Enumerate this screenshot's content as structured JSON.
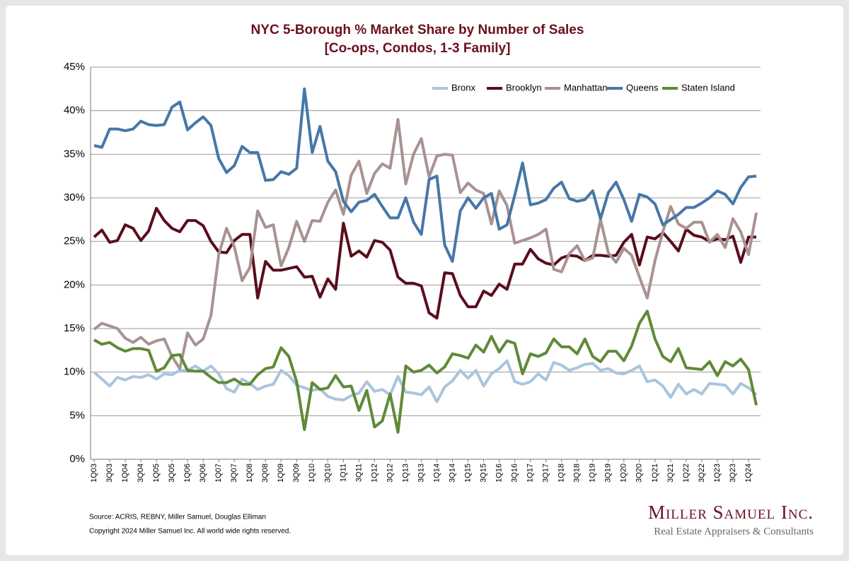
{
  "chart_data": {
    "type": "line",
    "title": "NYC 5-Borough % Market Share by Number of Sales",
    "subtitle": "[Co-ops, Condos, 1-3 Family]",
    "categories": [
      "1Q03",
      null,
      "3Q03",
      null,
      "1Q04",
      null,
      "3Q04",
      null,
      "1Q05",
      null,
      "3Q05",
      null,
      "1Q06",
      null,
      "3Q06",
      null,
      "1Q07",
      null,
      "3Q07",
      null,
      "1Q08",
      null,
      "3Q08",
      null,
      "1Q09",
      null,
      "3Q09",
      null,
      "1Q10",
      null,
      "3Q10",
      null,
      "1Q11",
      null,
      "3Q11",
      null,
      "1Q12",
      null,
      "3Q12",
      null,
      "1Q13",
      null,
      "3Q13",
      null,
      "1Q14",
      null,
      "3Q14",
      null,
      "1Q15",
      null,
      "3Q15",
      null,
      "1Q16",
      null,
      "3Q16",
      null,
      "1Q17",
      null,
      "3Q17",
      null,
      "1Q18",
      null,
      "3Q18",
      null,
      "1Q19",
      null,
      "3Q19",
      null,
      "1Q20",
      null,
      "3Q20",
      null,
      "1Q21",
      null,
      "3Q21",
      null,
      "1Q22",
      null,
      "3Q22",
      null,
      "1Q23",
      null,
      "3Q23",
      null,
      "1Q24",
      null
    ],
    "series": [
      {
        "name": "Bronx",
        "color": "#a9c5de",
        "values": [
          10.0,
          9.2,
          8.4,
          9.4,
          9.1,
          9.5,
          9.4,
          9.7,
          9.2,
          9.8,
          9.7,
          10.2,
          10.2,
          10.7,
          10.1,
          10.7,
          9.8,
          8.1,
          7.7,
          9.2,
          8.7,
          8.0,
          8.4,
          8.6,
          10.2,
          9.6,
          8.5,
          8.2,
          7.9,
          8.1,
          7.2,
          6.9,
          6.8,
          7.3,
          7.6,
          8.9,
          7.8,
          8.0,
          7.4,
          9.5,
          7.7,
          7.6,
          7.4,
          8.3,
          6.6,
          8.3,
          9.0,
          10.2,
          9.3,
          10.2,
          8.4,
          9.8,
          10.4,
          11.3,
          8.9,
          8.6,
          8.9,
          9.8,
          9.1,
          11.1,
          10.8,
          10.2,
          10.5,
          10.9,
          11.0,
          10.2,
          10.4,
          9.9,
          9.8,
          10.2,
          10.7,
          8.9,
          9.1,
          8.4,
          7.1,
          8.6,
          7.5,
          8.0,
          7.5,
          8.7,
          8.6,
          8.5,
          7.5,
          8.7,
          8.2,
          7.4
        ]
      },
      {
        "name": "Brooklyn",
        "color": "#5a0d1c",
        "values": [
          25.5,
          26.3,
          24.9,
          25.1,
          26.9,
          26.5,
          25.1,
          26.2,
          28.8,
          27.4,
          26.5,
          26.1,
          27.4,
          27.4,
          26.8,
          25.0,
          23.8,
          23.7,
          25.1,
          25.8,
          25.8,
          18.5,
          22.7,
          21.7,
          21.7,
          21.9,
          22.1,
          20.9,
          21.0,
          18.6,
          20.7,
          19.5,
          27.1,
          23.3,
          23.9,
          23.2,
          25.1,
          24.9,
          24.0,
          20.9,
          20.2,
          20.2,
          19.9,
          16.8,
          16.2,
          21.4,
          21.3,
          18.8,
          17.5,
          17.5,
          19.3,
          18.8,
          20.1,
          19.5,
          22.4,
          22.4,
          24.1,
          23.0,
          22.5,
          22.3,
          23.1,
          23.4,
          23.3,
          22.8,
          23.4,
          23.4,
          23.3,
          23.4,
          24.9,
          25.8,
          22.3,
          25.5,
          25.3,
          26.0,
          25.0,
          23.9,
          26.4,
          25.7,
          25.5,
          25.0,
          25.3,
          25.2,
          25.6,
          22.6,
          25.5,
          25.5
        ]
      },
      {
        "name": "Manhattan",
        "color": "#a99292",
        "values": [
          14.9,
          15.6,
          15.3,
          15.0,
          13.9,
          13.4,
          14.0,
          13.2,
          13.6,
          13.8,
          11.8,
          10.4,
          14.5,
          13.1,
          13.8,
          16.5,
          23.5,
          26.5,
          24.4,
          20.5,
          22.0,
          28.5,
          26.6,
          26.9,
          22.2,
          24.3,
          27.3,
          25.0,
          27.4,
          27.3,
          29.5,
          30.9,
          28.1,
          32.6,
          34.2,
          30.5,
          32.8,
          33.9,
          33.4,
          39.0,
          31.6,
          35.0,
          36.8,
          32.4,
          34.8,
          35.0,
          34.9,
          30.6,
          31.7,
          30.9,
          30.5,
          27.0,
          30.8,
          29.1,
          24.8,
          25.1,
          25.4,
          25.8,
          26.4,
          21.8,
          21.5,
          23.6,
          24.5,
          22.8,
          23.1,
          27.5,
          23.7,
          22.6,
          24.2,
          23.4,
          20.9,
          18.5,
          22.8,
          26.1,
          29.0,
          27.0,
          26.5,
          27.2,
          27.2,
          24.9,
          25.8,
          24.3,
          27.6,
          26.1,
          23.5,
          28.3
        ]
      },
      {
        "name": "Queens",
        "color": "#4677a8",
        "values": [
          36.0,
          35.8,
          37.9,
          37.9,
          37.7,
          37.9,
          38.8,
          38.4,
          38.3,
          38.4,
          40.4,
          41.0,
          37.8,
          38.6,
          39.3,
          38.3,
          34.5,
          32.9,
          33.7,
          35.9,
          35.2,
          35.2,
          32.0,
          32.1,
          33.0,
          32.7,
          33.4,
          42.5,
          35.2,
          38.2,
          34.2,
          33.0,
          29.6,
          28.4,
          29.5,
          29.7,
          30.4,
          29.0,
          27.7,
          27.7,
          30.0,
          27.2,
          25.8,
          32.1,
          32.5,
          24.6,
          22.7,
          28.5,
          30.0,
          28.8,
          30.0,
          30.5,
          26.4,
          26.9,
          30.3,
          34.0,
          29.2,
          29.4,
          29.8,
          31.1,
          31.8,
          29.9,
          29.6,
          29.8,
          30.8,
          27.6,
          30.6,
          31.8,
          29.8,
          27.3,
          30.4,
          30.1,
          29.3,
          26.9,
          27.5,
          28.1,
          28.9,
          28.9,
          29.4,
          30.0,
          30.8,
          30.4,
          29.3,
          31.2,
          32.4,
          32.5
        ]
      },
      {
        "name": "Staten Island",
        "color": "#5f8a38",
        "values": [
          13.7,
          13.2,
          13.4,
          12.8,
          12.4,
          12.7,
          12.7,
          12.5,
          10.1,
          10.5,
          11.9,
          12.0,
          10.2,
          10.1,
          10.1,
          9.4,
          8.8,
          8.8,
          9.2,
          8.6,
          8.6,
          9.7,
          10.4,
          10.6,
          12.8,
          11.8,
          8.9,
          3.4,
          8.8,
          8.0,
          8.2,
          9.6,
          8.3,
          8.4,
          5.6,
          7.9,
          3.7,
          4.4,
          7.5,
          3.1,
          10.7,
          10.0,
          10.2,
          10.8,
          9.9,
          10.6,
          12.1,
          11.9,
          11.6,
          13.1,
          12.3,
          14.1,
          12.3,
          13.6,
          13.3,
          9.8,
          12.1,
          11.8,
          12.2,
          13.8,
          12.9,
          12.9,
          12.1,
          13.8,
          11.8,
          11.2,
          12.4,
          12.4,
          11.3,
          13.0,
          15.6,
          17.0,
          13.8,
          11.8,
          11.2,
          12.7,
          10.5,
          10.4,
          10.3,
          11.2,
          9.6,
          11.2,
          10.7,
          11.5,
          10.3,
          6.2
        ]
      }
    ],
    "ylim": [
      0,
      45
    ],
    "yticks": [
      {
        "value": 0,
        "label": "0%"
      },
      {
        "value": 5,
        "label": "5%"
      },
      {
        "value": 10,
        "label": "10%"
      },
      {
        "value": 15,
        "label": "15%"
      },
      {
        "value": 20,
        "label": "20%"
      },
      {
        "value": 25,
        "label": "25%"
      },
      {
        "value": 30,
        "label": "30%"
      },
      {
        "value": 35,
        "label": "35%"
      },
      {
        "value": 40,
        "label": "40%"
      },
      {
        "value": 45,
        "label": "45%"
      }
    ],
    "grid": true,
    "legend": "top-right",
    "source": "Source: ACRIS, REBNY, Miller Samuel, Douglas Elliman",
    "copyright": "Copyright 2024 Miller Samuel Inc.  All world wide rights reserved."
  },
  "logo": {
    "name": "Miller Samuel Inc.",
    "tagline": "Real Estate Appraisers & Consultants"
  }
}
